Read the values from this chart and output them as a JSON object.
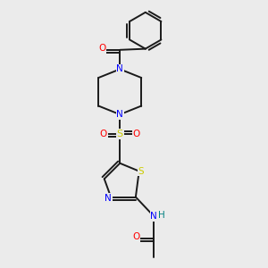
{
  "background_color": "#ebebeb",
  "bond_color": "#1a1a1a",
  "atom_colors": {
    "N": "#0000ff",
    "O": "#ff0000",
    "S_sulfonyl": "#cccc00",
    "S_thiazole": "#cccc00",
    "NH_N": "#0000ff",
    "NH_H": "#008080"
  },
  "figsize": [
    3.0,
    3.0
  ],
  "dpi": 100,
  "xlim": [
    0,
    10
  ],
  "ylim": [
    0,
    10
  ]
}
